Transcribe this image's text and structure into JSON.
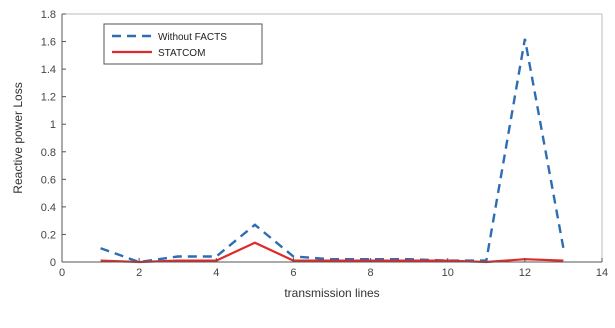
{
  "chart_data": {
    "type": "line",
    "title": "",
    "xlabel": "transmission lines",
    "ylabel": "Reactive power Loss",
    "xlim": [
      0,
      14
    ],
    "ylim": [
      0,
      1.8
    ],
    "xticks": [
      0,
      2,
      4,
      6,
      8,
      10,
      12,
      14
    ],
    "yticks": [
      0,
      0.2,
      0.4,
      0.6,
      0.8,
      1,
      1.2,
      1.4,
      1.6,
      1.8
    ],
    "grid": false,
    "legend_position": "top-left",
    "series": [
      {
        "name": "Without FACTS",
        "color": "#2e6db4",
        "style": "dashed",
        "x": [
          1,
          2,
          3,
          4,
          5,
          6,
          7,
          8,
          9,
          10,
          11,
          12,
          13
        ],
        "y": [
          0.1,
          0.0,
          0.04,
          0.04,
          0.27,
          0.04,
          0.02,
          0.02,
          0.02,
          0.01,
          0.01,
          1.62,
          0.1
        ]
      },
      {
        "name": "STATCOM",
        "color": "#e02a2a",
        "style": "solid",
        "x": [
          1,
          2,
          3,
          4,
          5,
          6,
          7,
          8,
          9,
          10,
          11,
          12,
          13
        ],
        "y": [
          0.01,
          0.0,
          0.01,
          0.01,
          0.14,
          0.01,
          0.01,
          0.01,
          0.01,
          0.01,
          0.0,
          0.02,
          0.01
        ]
      }
    ]
  }
}
